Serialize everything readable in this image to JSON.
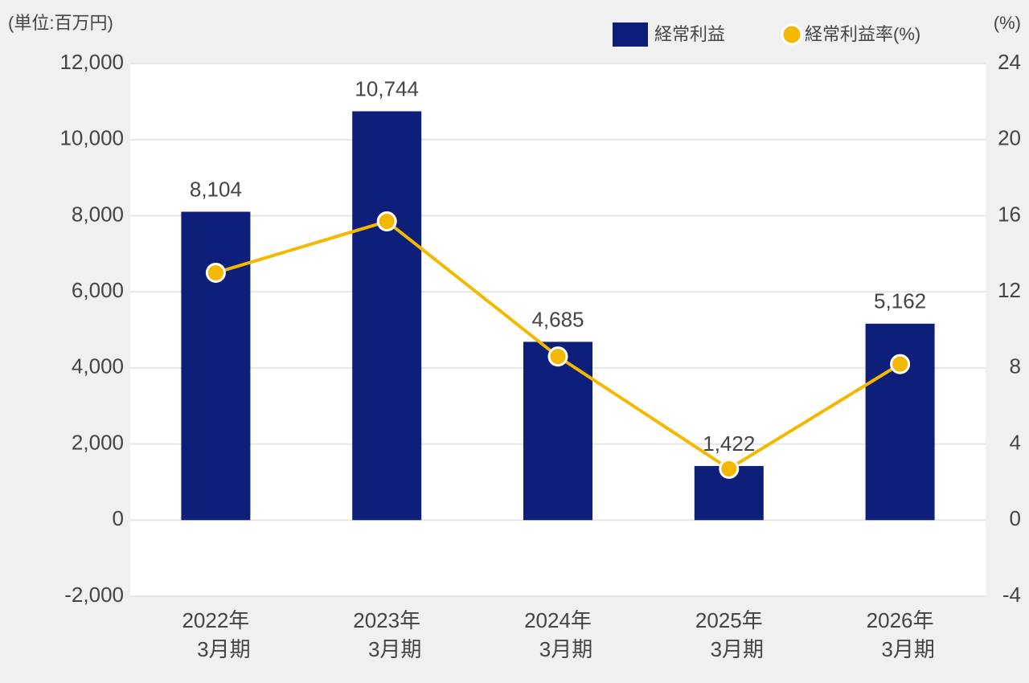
{
  "chart_data": {
    "type": "bar-line",
    "unit_left": "(単位:百万円)",
    "unit_right": "(%)",
    "categories": [
      [
        "2022年",
        "3月期"
      ],
      [
        "2023年",
        "3月期"
      ],
      [
        "2024年",
        "3月期"
      ],
      [
        "2025年",
        "3月期"
      ],
      [
        "2026年",
        "3月期"
      ]
    ],
    "series": [
      {
        "name": "経常利益",
        "type": "bar",
        "color": "#0e1f7a",
        "values": [
          8104,
          10744,
          4685,
          1422,
          5162
        ],
        "value_labels": [
          "8,104",
          "10,744",
          "4,685",
          "1,422",
          "5,162"
        ]
      },
      {
        "name": "経常利益率(%)",
        "type": "line",
        "axis": "y2",
        "color": "#f5b800",
        "values": [
          13.0,
          15.7,
          8.6,
          2.7,
          8.2
        ]
      }
    ],
    "ylim": [
      -2000,
      12000
    ],
    "yticks": [
      {
        "value": -2000,
        "label": "-2,000"
      },
      0,
      {
        "value": 2000,
        "label": "2,000"
      },
      {
        "value": 4000,
        "label": "4,000"
      },
      {
        "value": 6000,
        "label": "6,000"
      },
      {
        "value": 8000,
        "label": "8,000"
      },
      {
        "value": 10000,
        "label": "10,000"
      },
      {
        "value": 12000,
        "label": "12,000"
      }
    ],
    "y2lim": [
      -4,
      24
    ],
    "y2ticks": [
      -4,
      0,
      4,
      8,
      12,
      16,
      20,
      24
    ],
    "grid": true
  }
}
